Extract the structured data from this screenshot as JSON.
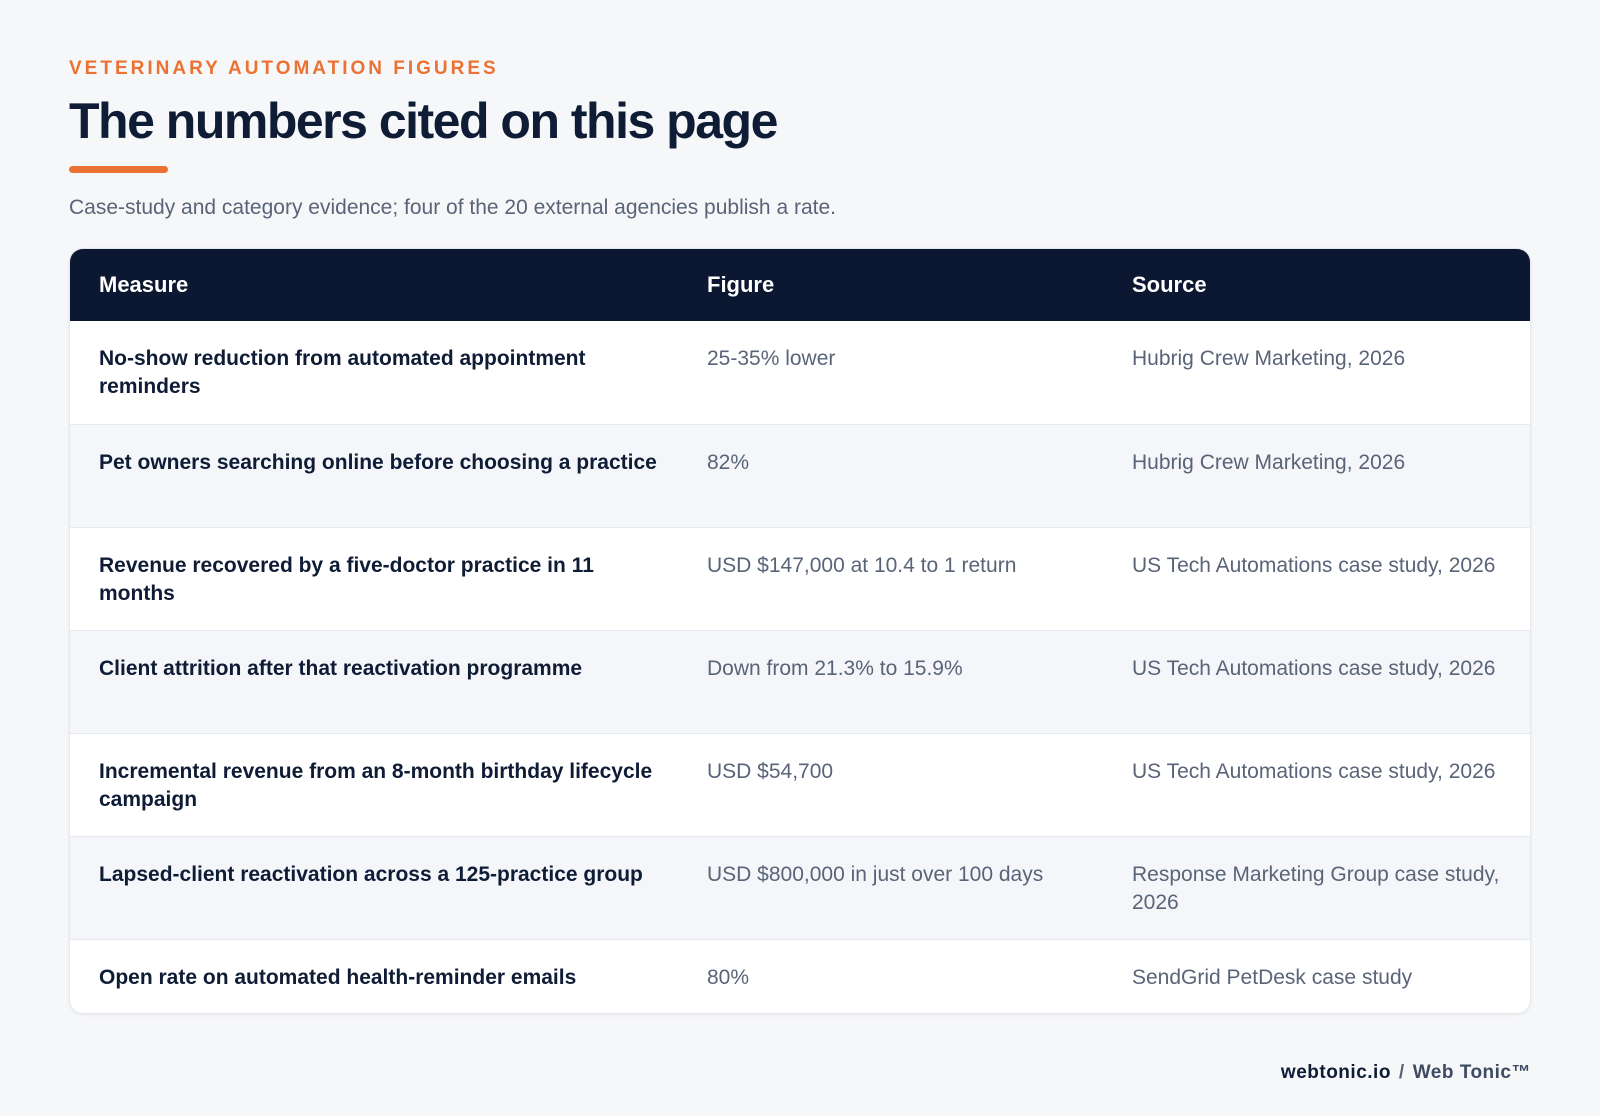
{
  "header": {
    "eyebrow": "VETERINARY AUTOMATION FIGURES",
    "title": "The numbers cited on this page",
    "subtitle": "Case-study and category evidence; four of the 20 external agencies publish a rate."
  },
  "table": {
    "columns": [
      "Measure",
      "Figure",
      "Source"
    ],
    "rows": [
      {
        "measure": "No-show reduction from automated appointment reminders",
        "figure": "25-35% lower",
        "source": "Hubrig Crew Marketing, 2026"
      },
      {
        "measure": "Pet owners searching online before choosing a practice",
        "figure": "82%",
        "source": "Hubrig Crew Marketing, 2026"
      },
      {
        "measure": "Revenue recovered by a five-doctor practice in 11 months",
        "figure": "USD $147,000 at 10.4 to 1 return",
        "source": "US Tech Automations case study, 2026"
      },
      {
        "measure": "Client attrition after that reactivation programme",
        "figure": "Down from 21.3% to 15.9%",
        "source": "US Tech Automations case study, 2026"
      },
      {
        "measure": "Incremental revenue from an 8-month birthday lifecycle campaign",
        "figure": "USD $54,700",
        "source": "US Tech Automations case study, 2026"
      },
      {
        "measure": "Lapsed-client reactivation across a 125-practice group",
        "figure": "USD $800,000 in just over 100 days",
        "source": "Response Marketing Group case study, 2026"
      },
      {
        "measure": "Open rate on automated health-reminder emails",
        "figure": "80%",
        "source": "SendGrid PetDesk case study"
      }
    ]
  },
  "footer": {
    "domain": "webtonic.io",
    "separator": "/",
    "brand": "Web Tonic™"
  },
  "colors": {
    "accent": "#ec7233",
    "header_bg": "#0c1832",
    "title": "#0f1c36",
    "muted": "#5a6478",
    "page_bg": "#f6f7f9"
  }
}
